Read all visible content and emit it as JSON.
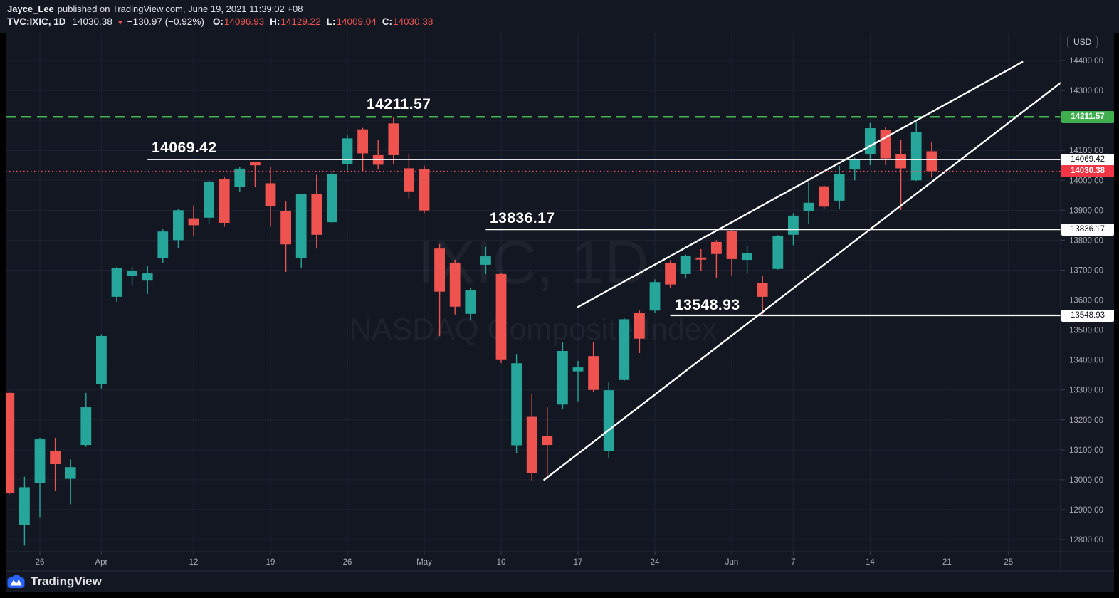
{
  "header": {
    "author": "Jayce_Lee",
    "published": "published on TradingView.com, June 19, 2021 11:39:02 +08",
    "symbol_label": "TVC:IXIC, 1D",
    "last_price": "14030.38",
    "direction_icon": "down-triangle-icon",
    "change_text": "−130.97 (−0.92%)",
    "o_key": "O:",
    "o_val": "14096.93",
    "h_key": "H:",
    "h_val": "14129.22",
    "l_key": "L:",
    "l_val": "14009.04",
    "c_key": "C:",
    "c_val": "14030.38"
  },
  "watermark": {
    "line1": "IXIC, 1D",
    "line2": "NASDAQ Composite Index"
  },
  "price_axis": {
    "currency": "USD",
    "tick_labels": [
      "14400.00",
      "14300.00",
      "14200.00",
      "14100.00",
      "14000.00",
      "13900.00",
      "13800.00",
      "13700.00",
      "13600.00",
      "13500.00",
      "13400.00",
      "13300.00",
      "13200.00",
      "13100.00",
      "13000.00",
      "12900.00",
      "12800.00"
    ],
    "badges": [
      {
        "text": "14211.57",
        "price": 14211.57,
        "kind": "level-green"
      },
      {
        "text": "14069.42",
        "price": 14069.42,
        "kind": "level-white"
      },
      {
        "text": "14030.38",
        "price": 14030.38,
        "kind": "last-price-red"
      },
      {
        "text": "13836.17",
        "price": 13836.17,
        "kind": "level-white"
      },
      {
        "text": "13548.93",
        "price": 13548.93,
        "kind": "level-white"
      }
    ]
  },
  "time_axis": [
    {
      "label": "26",
      "index": 2
    },
    {
      "label": "Apr",
      "index": 6
    },
    {
      "label": "12",
      "index": 12
    },
    {
      "label": "19",
      "index": 17
    },
    {
      "label": "26",
      "index": 22
    },
    {
      "label": "May",
      "index": 27
    },
    {
      "label": "10",
      "index": 32
    },
    {
      "label": "17",
      "index": 37
    },
    {
      "label": "24",
      "index": 42
    },
    {
      "label": "Jun",
      "index": 47
    },
    {
      "label": "7",
      "index": 51
    },
    {
      "label": "14",
      "index": 56
    },
    {
      "label": "21",
      "index": 61
    },
    {
      "label": "25",
      "index": 65
    }
  ],
  "annotations": {
    "levels": [
      {
        "label": "14211.57",
        "price": 14211.57,
        "style": "dashed",
        "color": "#43b24f",
        "start_index": null
      },
      {
        "label": "14069.42",
        "price": 14069.42,
        "style": "solid",
        "color": "#ffffff",
        "start_index": 9
      },
      {
        "label": "13836.17",
        "price": 13836.17,
        "style": "solid",
        "color": "#ffffff",
        "start_index": 31
      },
      {
        "label": "13548.93",
        "price": 13548.93,
        "style": "solid",
        "color": "#ffffff",
        "start_index": 43
      }
    ],
    "trendlines": [
      {
        "from_index": 37,
        "from_price": 13577,
        "to_index": 65.9,
        "to_price": 14395
      },
      {
        "from_index": 34.8,
        "from_price": 13000,
        "to_index": 68.4,
        "to_price": 14326
      }
    ],
    "last_price_line": {
      "price": 14030.38,
      "color": "#f7525f"
    }
  },
  "footer": {
    "brand": "TradingView"
  },
  "chart_data": {
    "type": "candlestick",
    "symbol": "TVC:IXIC",
    "interval": "1D",
    "title": "NASDAQ Composite Index",
    "ylim": [
      12800,
      14400
    ],
    "y_step": 100,
    "grid": true,
    "key_levels": [
      14211.57,
      14069.42,
      13836.17,
      13548.93
    ],
    "colors": {
      "up": "#26a69a",
      "down": "#ef5350"
    },
    "dates": [
      "2021-03-24",
      "2021-03-25",
      "2021-03-26",
      "2021-03-29",
      "2021-03-30",
      "2021-03-31",
      "2021-04-01",
      "2021-04-05",
      "2021-04-06",
      "2021-04-07",
      "2021-04-08",
      "2021-04-09",
      "2021-04-12",
      "2021-04-13",
      "2021-04-14",
      "2021-04-15",
      "2021-04-16",
      "2021-04-19",
      "2021-04-20",
      "2021-04-21",
      "2021-04-22",
      "2021-04-23",
      "2021-04-26",
      "2021-04-27",
      "2021-04-28",
      "2021-04-29",
      "2021-04-30",
      "2021-05-03",
      "2021-05-04",
      "2021-05-05",
      "2021-05-06",
      "2021-05-07",
      "2021-05-10",
      "2021-05-11",
      "2021-05-12",
      "2021-05-13",
      "2021-05-14",
      "2021-05-17",
      "2021-05-18",
      "2021-05-19",
      "2021-05-20",
      "2021-05-21",
      "2021-05-24",
      "2021-05-25",
      "2021-05-26",
      "2021-05-27",
      "2021-05-28",
      "2021-06-01",
      "2021-06-02",
      "2021-06-03",
      "2021-06-04",
      "2021-06-07",
      "2021-06-08",
      "2021-06-09",
      "2021-06-10",
      "2021-06-11",
      "2021-06-14",
      "2021-06-15",
      "2021-06-16",
      "2021-06-17",
      "2021-06-18"
    ],
    "open": [
      13290,
      12850,
      12990,
      13097,
      13003,
      13116,
      13320,
      13611,
      13680,
      13665,
      13739,
      13800,
      13873,
      13875,
      14005,
      13979,
      14060,
      13990,
      13896,
      13741,
      13953,
      13860,
      14055,
      14170,
      14084,
      14190,
      14040,
      14038,
      13772,
      13725,
      13554,
      13718,
      13687,
      13115,
      13210,
      13147,
      13251,
      13362,
      13413,
      13095,
      13333,
      13556,
      13565,
      13723,
      13687,
      13742,
      13794,
      13830,
      13734,
      13658,
      13704,
      13818,
      13898,
      13980,
      13932,
      14036,
      14087,
      14167,
      14087,
      14000,
      14096.93
    ],
    "high": [
      13295,
      13010,
      13140,
      13140,
      13068,
      13290,
      13486,
      13711,
      13712,
      13714,
      13836,
      13905,
      13916,
      14000,
      14012,
      14044,
      14062,
      14045,
      13929,
      13955,
      14018,
      14032,
      14150,
      14175,
      14134,
      14211.57,
      14089,
      14049,
      13787,
      13735,
      13640,
      13778,
      13690,
      13420,
      13287,
      13242,
      13459,
      13397,
      13460,
      13325,
      13542,
      13565,
      13669,
      13733,
      13752,
      13770,
      13800,
      13836,
      13782,
      13682,
      13817,
      13890,
      13993,
      13985,
      14048,
      14075,
      14192,
      14178,
      14134,
      14195,
      14129.22
    ],
    "low": [
      12950,
      12780,
      12875,
      12963,
      12918,
      13110,
      13305,
      13594,
      13648,
      13620,
      13725,
      13772,
      13812,
      13854,
      13845,
      13960,
      13977,
      13845,
      13694,
      13706,
      13772,
      13857,
      14033,
      14030,
      14036,
      14054,
      13940,
      13890,
      13479,
      13552,
      13532,
      13687,
      13390,
      13090,
      12997,
      13002,
      13237,
      13262,
      13294,
      13072,
      13330,
      13423,
      13558,
      13639,
      13672,
      13698,
      13675,
      13680,
      13687,
      13548.93,
      13702,
      13783,
      13854,
      13905,
      13903,
      14000,
      14051,
      14051,
      13901,
      13998,
      14009.04
    ],
    "close": [
      12955,
      12975,
      13135,
      13052,
      13042,
      13242,
      13480,
      13706,
      13698,
      13689,
      13829,
      13900,
      13850,
      13996,
      13858,
      14039,
      14050,
      13915,
      13786,
      13953,
      13818,
      14020,
      14140,
      14090,
      14052,
      14084,
      13963,
      13899,
      13628,
      13578,
      13632,
      13746,
      13402,
      13389,
      13023,
      13116,
      13430,
      13375,
      13300,
      13299,
      13536,
      13471,
      13660,
      13652,
      13747,
      13735,
      13754,
      13737,
      13758,
      13611,
      13814,
      13882,
      13925,
      13912,
      14020,
      14069,
      14174,
      14073,
      14040,
      14162,
      14030.38
    ]
  }
}
